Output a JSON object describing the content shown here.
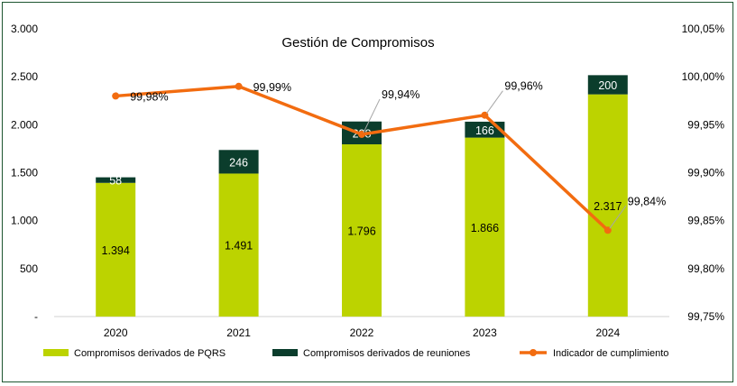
{
  "chart_data": {
    "type": "bar",
    "stacked": true,
    "title": "Gestión de Compromisos",
    "categories": [
      "2020",
      "2021",
      "2022",
      "2023",
      "2024"
    ],
    "series": [
      {
        "name": "Compromisos derivados de PQRS",
        "type": "bar",
        "axis": "left",
        "color": "#bcd300",
        "values": [
          1394,
          1491,
          1796,
          1866,
          2317
        ],
        "labels": [
          "1.394",
          "1.491",
          "1.796",
          "1.866",
          "2.317"
        ]
      },
      {
        "name": "Compromisos derivados de reuniones",
        "type": "bar",
        "axis": "left",
        "color": "#0b3d2c",
        "values": [
          58,
          246,
          238,
          166,
          200
        ],
        "labels": [
          "58",
          "246",
          "238",
          "166",
          "200"
        ]
      },
      {
        "name": "Indicador de cumplimiento",
        "type": "line",
        "axis": "right",
        "color": "#f26c10",
        "values": [
          99.98,
          99.99,
          99.94,
          99.96,
          99.84
        ],
        "labels": [
          "99,98%",
          "99,99%",
          "99,94%",
          "99,96%",
          "99,84%"
        ]
      }
    ],
    "y_left": {
      "min": 0,
      "max": 3000,
      "ticks": [
        0,
        500,
        1000,
        1500,
        2000,
        2500,
        3000
      ],
      "tick_labels": [
        "-",
        "500",
        "1.000",
        "1.500",
        "2.000",
        "2.500",
        "3.000"
      ]
    },
    "y_right": {
      "min": 99.75,
      "max": 100.05,
      "ticks": [
        99.75,
        99.8,
        99.85,
        99.9,
        99.95,
        100.0,
        100.05
      ],
      "tick_labels": [
        "99,75%",
        "99,80%",
        "99,85%",
        "99,90%",
        "99,95%",
        "100,00%",
        "100,05%"
      ]
    },
    "grid": false,
    "legend_position": "bottom"
  }
}
